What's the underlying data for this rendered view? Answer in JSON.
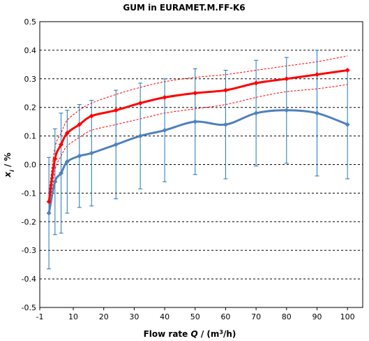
{
  "chart_data": {
    "type": "line",
    "title": "GUM in EURAMET.M.FF-K6",
    "xlabel": {
      "prefix": "Flow rate ",
      "var": "Q",
      "mid": " / (m",
      "sup": "3",
      "suffix": "/h)"
    },
    "ylabel": {
      "var": "x",
      "sub": "i",
      "suffix": " / %"
    },
    "xlim": [
      -1,
      105
    ],
    "ylim": [
      -0.5,
      0.5
    ],
    "xticks": [
      -1,
      10,
      20,
      30,
      40,
      50,
      60,
      70,
      80,
      90,
      100
    ],
    "yticks": [
      -0.5,
      -0.4,
      -0.3,
      -0.2,
      -0.1,
      0.0,
      0.1,
      0.2,
      0.3,
      0.4,
      0.5
    ],
    "ytick_labels": [
      "-0.5",
      "-0.4",
      "-0.3",
      "-0.2",
      "-0.1",
      "0.0",
      "0.1",
      "0.2",
      "0.3",
      "0.4",
      "0.5"
    ],
    "grid": "horizontal dashed",
    "series": [
      {
        "color": "#4f81bd",
        "marker": "diamond",
        "with_error_bars": true,
        "x": [
          2,
          4,
          6,
          8,
          12,
          16,
          24,
          32,
          40,
          50,
          60,
          70,
          80,
          90,
          100
        ],
        "y": [
          -0.17,
          -0.06,
          -0.03,
          0.01,
          0.03,
          0.04,
          0.07,
          0.1,
          0.12,
          0.15,
          0.14,
          0.18,
          0.19,
          0.18,
          0.14
        ],
        "error_plus_minus": [
          0.195,
          0.185,
          0.21,
          0.18,
          0.18,
          0.185,
          0.19,
          0.185,
          0.18,
          0.185,
          0.19,
          0.185,
          0.185,
          0.22,
          0.19
        ]
      },
      {
        "color": "#ff0000",
        "marker": "diamond",
        "x": [
          2,
          4,
          6,
          8,
          12,
          16,
          24,
          32,
          40,
          50,
          60,
          70,
          80,
          90,
          100
        ],
        "y": [
          -0.13,
          0.02,
          0.07,
          0.11,
          0.14,
          0.17,
          0.19,
          0.215,
          0.235,
          0.25,
          0.26,
          0.285,
          0.3,
          0.315,
          0.33
        ]
      },
      {
        "color": "#ff0000",
        "style": "dashed thin",
        "x": [
          2,
          4,
          6,
          8,
          12,
          16,
          24,
          32,
          40,
          50,
          60,
          70,
          80,
          90,
          100
        ],
        "y": [
          -0.1,
          0.06,
          0.11,
          0.155,
          0.19,
          0.215,
          0.245,
          0.27,
          0.29,
          0.305,
          0.315,
          0.33,
          0.345,
          0.36,
          0.38
        ]
      },
      {
        "color": "#ff0000",
        "style": "dashed thin",
        "x": [
          2,
          4,
          6,
          8,
          12,
          16,
          24,
          32,
          40,
          50,
          60,
          70,
          80,
          90,
          100
        ],
        "y": [
          -0.16,
          -0.02,
          0.03,
          0.065,
          0.095,
          0.12,
          0.14,
          0.16,
          0.18,
          0.195,
          0.21,
          0.235,
          0.255,
          0.265,
          0.28
        ]
      }
    ]
  }
}
